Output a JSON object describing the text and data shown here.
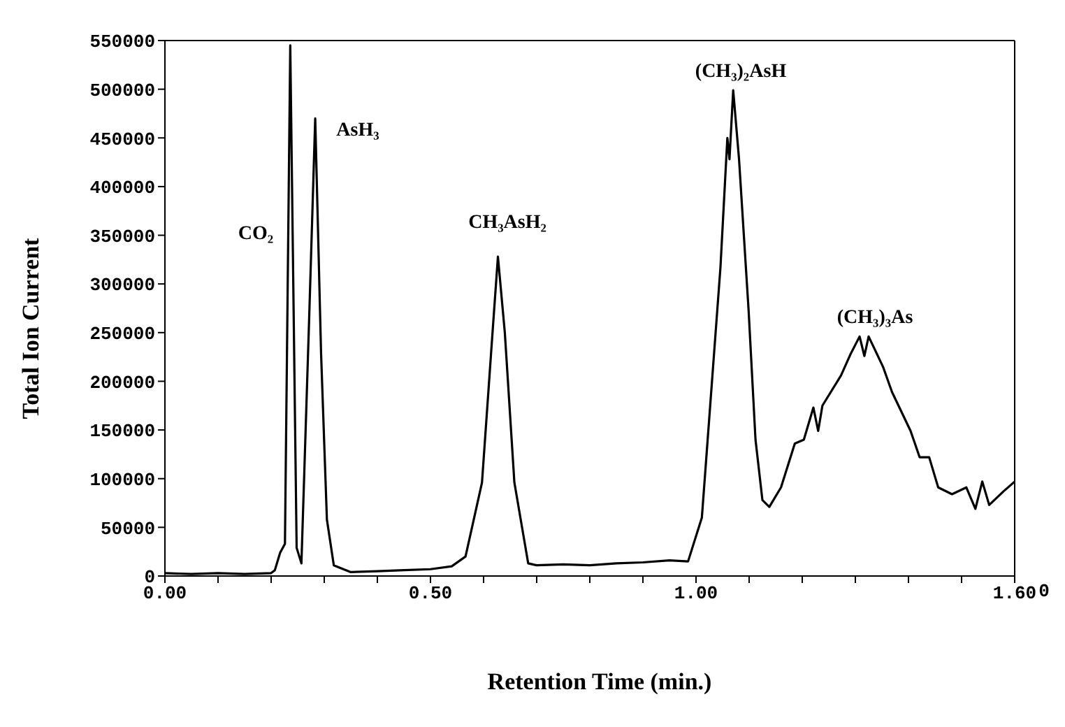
{
  "chart_data": {
    "type": "line",
    "xlabel": "Retention Time (min.)",
    "ylabel": "Total Ion Current",
    "series": [
      {
        "color": "#000000",
        "x": [
          0,
          0.05,
          0.1,
          0.15,
          0.2,
          0.207,
          0.217,
          0.226,
          0.236,
          0.248,
          0.257,
          0.272,
          0.283,
          0.294,
          0.305,
          0.318,
          0.35,
          0.4,
          0.45,
          0.5,
          0.54,
          0.566,
          0.597,
          0.614,
          0.627,
          0.64,
          0.658,
          0.684,
          0.7,
          0.75,
          0.8,
          0.85,
          0.9,
          0.95,
          0.985,
          1.011,
          1.046,
          1.059,
          1.063,
          1.07,
          1.081,
          1.099,
          1.112,
          1.125,
          1.138,
          1.16,
          1.186,
          1.203,
          1.221,
          1.23,
          1.238,
          1.273,
          1.291,
          1.308,
          1.317,
          1.325,
          1.352,
          1.369,
          1.404,
          1.421,
          1.439,
          1.456,
          1.482,
          1.509,
          1.526,
          1.539,
          1.552,
          1.579,
          1.6
        ],
        "values": [
          3000,
          2000,
          3000,
          2000,
          3000,
          6000,
          24000,
          33000,
          545000,
          29000,
          13000,
          272000,
          470000,
          229000,
          58000,
          11000,
          4000,
          5000,
          6000,
          7000,
          10000,
          20000,
          96000,
          228000,
          328000,
          250000,
          96000,
          13000,
          11000,
          12000,
          11000,
          13000,
          14000,
          16000,
          15000,
          60000,
          317000,
          450000,
          428000,
          499000,
          428000,
          273000,
          140000,
          78000,
          71000,
          91000,
          136000,
          140000,
          173000,
          149000,
          175000,
          206000,
          228000,
          246000,
          226000,
          246000,
          215000,
          189000,
          149000,
          122000,
          122000,
          91000,
          84000,
          91000,
          69000,
          97000,
          73000,
          87000,
          97000
        ]
      }
    ],
    "xlim": [
      0,
      1.6
    ],
    "xticks": [
      {
        "value": 0,
        "label": "0.00"
      },
      {
        "value": 0.1,
        "label": null
      },
      {
        "value": 0.2,
        "label": null
      },
      {
        "value": 0.3,
        "label": null
      },
      {
        "value": 0.4,
        "label": null
      },
      {
        "value": 0.5,
        "label": "0.50"
      },
      {
        "value": 0.6,
        "label": null
      },
      {
        "value": 0.7,
        "label": null
      },
      {
        "value": 0.8,
        "label": null
      },
      {
        "value": 0.9,
        "label": null
      },
      {
        "value": 1,
        "label": "1.00"
      },
      {
        "value": 1.1,
        "label": null
      },
      {
        "value": 1.2,
        "label": null
      },
      {
        "value": 1.3,
        "label": null
      },
      {
        "value": 1.4,
        "label": null
      },
      {
        "value": 1.5,
        "label": null
      },
      {
        "value": 1.6,
        "label": "1.60"
      }
    ],
    "ylim": [
      0,
      550000
    ],
    "yticks": [
      0,
      50000,
      100000,
      150000,
      200000,
      250000,
      300000,
      350000,
      400000,
      450000,
      500000,
      550000
    ],
    "annotations": [
      "CO₂",
      "AsH₃",
      "CH₃AsH₂",
      "(CH₃)₂AsH",
      "(CH₃)₃As",
      "0"
    ],
    "grid": false,
    "legend": false,
    "marker": "none",
    "line_style": "solid"
  }
}
